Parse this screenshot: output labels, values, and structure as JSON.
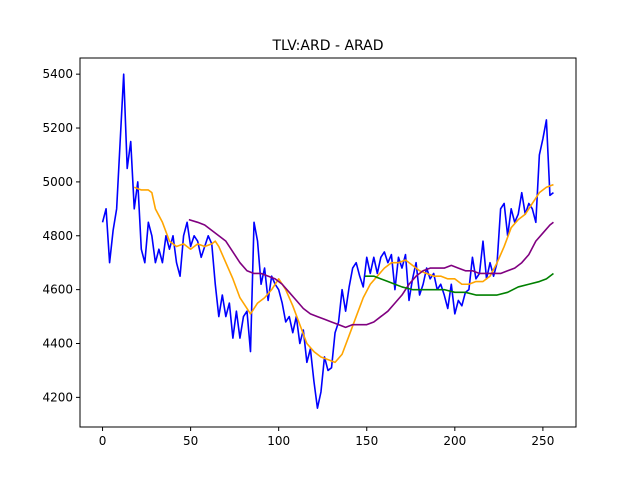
{
  "chart_data": {
    "type": "line",
    "title": "TLV:ARD - ARAD",
    "xlabel": "",
    "ylabel": "",
    "xlim": [
      -12.8,
      268.8
    ],
    "ylim": [
      4090,
      5460
    ],
    "x_ticks": [
      0,
      50,
      100,
      150,
      200,
      250
    ],
    "y_ticks": [
      4200,
      4400,
      4600,
      4800,
      5000,
      5200,
      5400
    ],
    "grid": false,
    "series": [
      {
        "color": "#0000ff",
        "points": [
          [
            0,
            4850
          ],
          [
            2,
            4900
          ],
          [
            4,
            4700
          ],
          [
            6,
            4820
          ],
          [
            8,
            4900
          ],
          [
            10,
            5150
          ],
          [
            12,
            5400
          ],
          [
            14,
            5050
          ],
          [
            16,
            5150
          ],
          [
            18,
            4900
          ],
          [
            20,
            5000
          ],
          [
            22,
            4750
          ],
          [
            24,
            4700
          ],
          [
            26,
            4850
          ],
          [
            28,
            4800
          ],
          [
            30,
            4700
          ],
          [
            32,
            4750
          ],
          [
            34,
            4700
          ],
          [
            36,
            4800
          ],
          [
            38,
            4750
          ],
          [
            40,
            4800
          ],
          [
            42,
            4700
          ],
          [
            44,
            4650
          ],
          [
            46,
            4800
          ],
          [
            48,
            4850
          ],
          [
            50,
            4760
          ],
          [
            52,
            4800
          ],
          [
            54,
            4780
          ],
          [
            56,
            4720
          ],
          [
            58,
            4760
          ],
          [
            60,
            4800
          ],
          [
            62,
            4770
          ],
          [
            64,
            4620
          ],
          [
            66,
            4500
          ],
          [
            68,
            4580
          ],
          [
            70,
            4500
          ],
          [
            72,
            4550
          ],
          [
            74,
            4420
          ],
          [
            76,
            4520
          ],
          [
            78,
            4420
          ],
          [
            80,
            4500
          ],
          [
            82,
            4520
          ],
          [
            84,
            4370
          ],
          [
            86,
            4850
          ],
          [
            88,
            4780
          ],
          [
            90,
            4620
          ],
          [
            92,
            4680
          ],
          [
            94,
            4560
          ],
          [
            96,
            4650
          ],
          [
            98,
            4620
          ],
          [
            100,
            4600
          ],
          [
            102,
            4550
          ],
          [
            104,
            4480
          ],
          [
            106,
            4500
          ],
          [
            108,
            4440
          ],
          [
            110,
            4500
          ],
          [
            112,
            4400
          ],
          [
            114,
            4450
          ],
          [
            116,
            4330
          ],
          [
            118,
            4380
          ],
          [
            120,
            4260
          ],
          [
            122,
            4160
          ],
          [
            124,
            4220
          ],
          [
            126,
            4350
          ],
          [
            128,
            4300
          ],
          [
            130,
            4310
          ],
          [
            132,
            4440
          ],
          [
            134,
            4480
          ],
          [
            136,
            4600
          ],
          [
            138,
            4520
          ],
          [
            140,
            4610
          ],
          [
            142,
            4680
          ],
          [
            144,
            4700
          ],
          [
            146,
            4650
          ],
          [
            148,
            4610
          ],
          [
            150,
            4720
          ],
          [
            152,
            4660
          ],
          [
            154,
            4720
          ],
          [
            156,
            4660
          ],
          [
            158,
            4720
          ],
          [
            160,
            4740
          ],
          [
            162,
            4700
          ],
          [
            164,
            4730
          ],
          [
            166,
            4600
          ],
          [
            168,
            4720
          ],
          [
            170,
            4680
          ],
          [
            172,
            4730
          ],
          [
            174,
            4560
          ],
          [
            176,
            4640
          ],
          [
            178,
            4700
          ],
          [
            180,
            4580
          ],
          [
            182,
            4620
          ],
          [
            184,
            4680
          ],
          [
            186,
            4640
          ],
          [
            188,
            4660
          ],
          [
            190,
            4600
          ],
          [
            192,
            4620
          ],
          [
            194,
            4580
          ],
          [
            196,
            4530
          ],
          [
            198,
            4620
          ],
          [
            200,
            4510
          ],
          [
            202,
            4560
          ],
          [
            204,
            4540
          ],
          [
            206,
            4590
          ],
          [
            208,
            4600
          ],
          [
            210,
            4720
          ],
          [
            212,
            4640
          ],
          [
            214,
            4660
          ],
          [
            216,
            4780
          ],
          [
            218,
            4640
          ],
          [
            220,
            4700
          ],
          [
            222,
            4650
          ],
          [
            224,
            4700
          ],
          [
            226,
            4900
          ],
          [
            228,
            4920
          ],
          [
            230,
            4800
          ],
          [
            232,
            4900
          ],
          [
            234,
            4850
          ],
          [
            236,
            4880
          ],
          [
            238,
            4960
          ],
          [
            240,
            4880
          ],
          [
            242,
            4920
          ],
          [
            244,
            4900
          ],
          [
            246,
            4850
          ],
          [
            248,
            5100
          ],
          [
            250,
            5160
          ],
          [
            252,
            5230
          ],
          [
            254,
            4950
          ],
          [
            256,
            4960
          ]
        ]
      },
      {
        "color": "#ffa500",
        "points": [
          [
            18,
            4980
          ],
          [
            22,
            4970
          ],
          [
            26,
            4970
          ],
          [
            28,
            4960
          ],
          [
            30,
            4900
          ],
          [
            34,
            4850
          ],
          [
            38,
            4780
          ],
          [
            42,
            4760
          ],
          [
            46,
            4770
          ],
          [
            50,
            4750
          ],
          [
            54,
            4770
          ],
          [
            58,
            4760
          ],
          [
            62,
            4770
          ],
          [
            64,
            4780
          ],
          [
            66,
            4760
          ],
          [
            70,
            4700
          ],
          [
            74,
            4640
          ],
          [
            78,
            4570
          ],
          [
            82,
            4530
          ],
          [
            84,
            4510
          ],
          [
            88,
            4550
          ],
          [
            92,
            4570
          ],
          [
            96,
            4600
          ],
          [
            100,
            4640
          ],
          [
            104,
            4600
          ],
          [
            108,
            4540
          ],
          [
            112,
            4470
          ],
          [
            116,
            4400
          ],
          [
            120,
            4370
          ],
          [
            124,
            4350
          ],
          [
            128,
            4340
          ],
          [
            132,
            4330
          ],
          [
            136,
            4360
          ],
          [
            140,
            4430
          ],
          [
            144,
            4500
          ],
          [
            148,
            4570
          ],
          [
            152,
            4620
          ],
          [
            156,
            4650
          ],
          [
            160,
            4680
          ],
          [
            164,
            4700
          ],
          [
            168,
            4700
          ],
          [
            172,
            4710
          ],
          [
            176,
            4690
          ],
          [
            180,
            4670
          ],
          [
            184,
            4660
          ],
          [
            188,
            4650
          ],
          [
            192,
            4650
          ],
          [
            196,
            4640
          ],
          [
            200,
            4640
          ],
          [
            204,
            4620
          ],
          [
            208,
            4620
          ],
          [
            212,
            4630
          ],
          [
            216,
            4630
          ],
          [
            220,
            4650
          ],
          [
            224,
            4700
          ],
          [
            228,
            4760
          ],
          [
            232,
            4830
          ],
          [
            236,
            4860
          ],
          [
            240,
            4880
          ],
          [
            244,
            4920
          ],
          [
            248,
            4960
          ],
          [
            252,
            4980
          ],
          [
            256,
            4990
          ]
        ]
      },
      {
        "color": "#800080",
        "points": [
          [
            49,
            4860
          ],
          [
            54,
            4850
          ],
          [
            58,
            4840
          ],
          [
            62,
            4820
          ],
          [
            66,
            4800
          ],
          [
            70,
            4780
          ],
          [
            74,
            4740
          ],
          [
            78,
            4700
          ],
          [
            82,
            4670
          ],
          [
            86,
            4660
          ],
          [
            90,
            4660
          ],
          [
            94,
            4650
          ],
          [
            98,
            4640
          ],
          [
            102,
            4620
          ],
          [
            106,
            4590
          ],
          [
            110,
            4560
          ],
          [
            114,
            4530
          ],
          [
            118,
            4510
          ],
          [
            122,
            4500
          ],
          [
            126,
            4490
          ],
          [
            130,
            4480
          ],
          [
            134,
            4470
          ],
          [
            138,
            4460
          ],
          [
            142,
            4470
          ],
          [
            146,
            4470
          ],
          [
            150,
            4470
          ],
          [
            154,
            4480
          ],
          [
            158,
            4500
          ],
          [
            162,
            4520
          ],
          [
            166,
            4550
          ],
          [
            170,
            4580
          ],
          [
            174,
            4620
          ],
          [
            178,
            4650
          ],
          [
            182,
            4670
          ],
          [
            186,
            4680
          ],
          [
            190,
            4680
          ],
          [
            194,
            4680
          ],
          [
            198,
            4690
          ],
          [
            202,
            4680
          ],
          [
            206,
            4670
          ],
          [
            210,
            4670
          ],
          [
            214,
            4660
          ],
          [
            218,
            4660
          ],
          [
            222,
            4660
          ],
          [
            226,
            4660
          ],
          [
            230,
            4670
          ],
          [
            234,
            4680
          ],
          [
            238,
            4700
          ],
          [
            242,
            4730
          ],
          [
            246,
            4780
          ],
          [
            250,
            4810
          ],
          [
            254,
            4840
          ],
          [
            256,
            4850
          ]
        ]
      },
      {
        "color": "#008000",
        "points": [
          [
            149,
            4650
          ],
          [
            154,
            4650
          ],
          [
            158,
            4640
          ],
          [
            162,
            4630
          ],
          [
            166,
            4620
          ],
          [
            170,
            4610
          ],
          [
            176,
            4600
          ],
          [
            182,
            4600
          ],
          [
            188,
            4600
          ],
          [
            194,
            4600
          ],
          [
            200,
            4590
          ],
          [
            206,
            4590
          ],
          [
            212,
            4580
          ],
          [
            218,
            4580
          ],
          [
            224,
            4580
          ],
          [
            230,
            4590
          ],
          [
            236,
            4610
          ],
          [
            242,
            4620
          ],
          [
            248,
            4630
          ],
          [
            252,
            4640
          ],
          [
            256,
            4660
          ]
        ]
      }
    ]
  }
}
